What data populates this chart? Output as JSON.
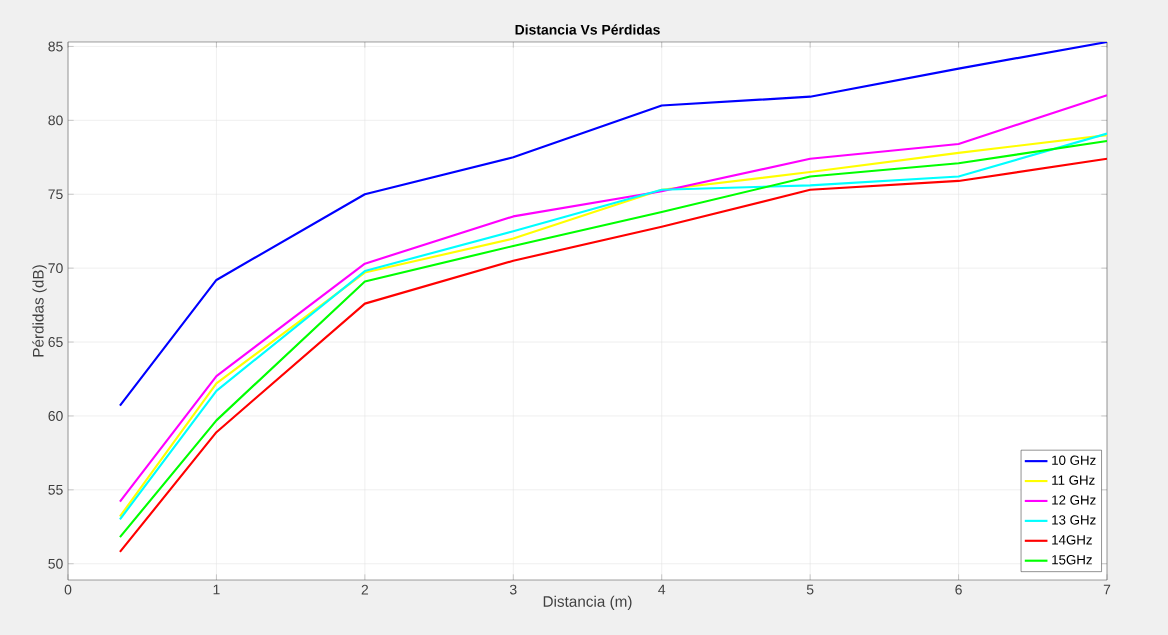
{
  "chart_data": {
    "type": "line",
    "title": "Distancia Vs Pérdidas",
    "xlabel": "Distancia (m)",
    "ylabel": "Pérdidas (dB)",
    "x": [
      0.35,
      1,
      2,
      3,
      4,
      5,
      6,
      7
    ],
    "series": [
      {
        "name": "10 GHz",
        "color": "#0000ff",
        "values": [
          60.7,
          69.2,
          75.0,
          77.5,
          81.0,
          81.6,
          83.5,
          85.3
        ]
      },
      {
        "name": "11 GHz",
        "color": "#ffff00",
        "values": [
          53.2,
          62.2,
          69.7,
          72.0,
          75.3,
          76.5,
          77.8,
          79.0
        ]
      },
      {
        "name": "12 GHz",
        "color": "#ff00ff",
        "values": [
          54.2,
          62.7,
          70.3,
          73.5,
          75.2,
          77.4,
          78.4,
          81.7
        ]
      },
      {
        "name": "13 GHz",
        "color": "#00ffff",
        "values": [
          53.0,
          61.7,
          69.8,
          72.5,
          75.3,
          75.6,
          76.2,
          79.1
        ]
      },
      {
        "name": "14GHz",
        "color": "#ff0000",
        "values": [
          50.8,
          58.9,
          67.6,
          70.5,
          72.8,
          75.3,
          75.9,
          77.4
        ]
      },
      {
        "name": "15GHz",
        "color": "#00ff00",
        "values": [
          51.8,
          59.7,
          69.1,
          71.5,
          73.8,
          76.2,
          77.1,
          78.6
        ]
      }
    ],
    "xlim": [
      0,
      7
    ],
    "ylim": [
      48.9,
      85.3
    ],
    "xticks": [
      0,
      1,
      2,
      3,
      4,
      5,
      6,
      7
    ],
    "yticks": [
      50,
      55,
      60,
      65,
      70,
      75,
      80,
      85
    ],
    "grid": true,
    "legend": "bottom right",
    "marker": "none",
    "line_style": "solid"
  }
}
